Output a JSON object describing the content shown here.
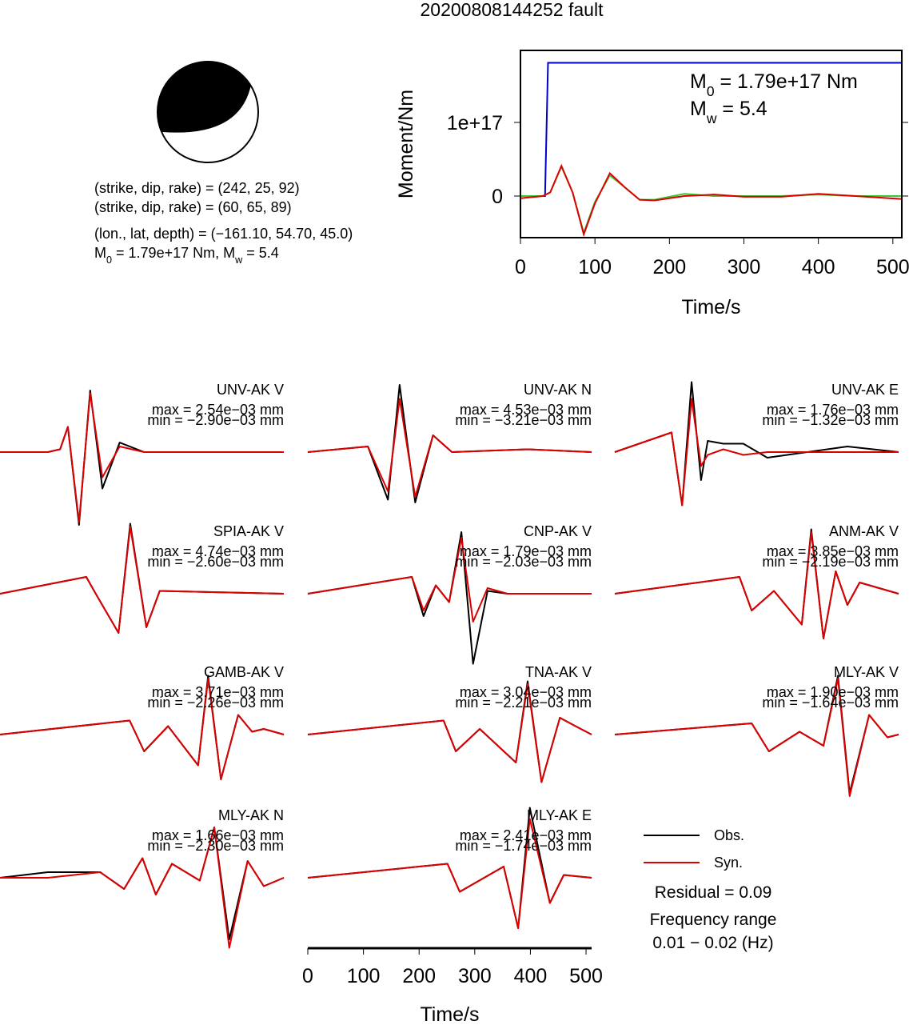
{
  "title": "20200808144252 fault",
  "mechanism": {
    "lines": [
      [
        "(strike, dip, rake) = (242, 25, 92)"
      ],
      [
        "(strike, dip, rake) = (60, 65, 89)"
      ],
      [
        "(lon., lat, depth) = (−161.10, 54.70, 45.0)"
      ],
      [
        "M",
        "0",
        " = 1.79e+17 Nm, M",
        "w",
        " = 5.4"
      ]
    ]
  },
  "chart_data": [
    {
      "type": "moment",
      "xlabel": "Time/s",
      "ylabel": "Moment/Nm",
      "xlim": [
        0,
        512
      ],
      "ylim": [
        -5.65e+16,
        1.978e+17
      ],
      "xticks": [
        0,
        100,
        200,
        300,
        400,
        500
      ],
      "yticks": [
        0,
        {
          "value": 1e+17,
          "label": "1e+17"
        }
      ],
      "annotations": [
        [
          "M",
          "0",
          " = 1.79e+17 Nm"
        ],
        [
          "M",
          "w",
          " = 5.4"
        ]
      ],
      "series": [
        {
          "color": "#0000cc",
          "x": [
            0,
            33,
            37,
            512
          ],
          "values": [
            0,
            0,
            1.81e+17,
            1.81e+17
          ]
        },
        {
          "color": "#33cc33",
          "x": [
            0,
            30,
            40,
            55,
            70,
            85,
            100,
            120,
            140,
            160,
            180,
            220,
            260,
            300,
            350,
            400,
            450,
            512
          ],
          "values": [
            0,
            0,
            5000000000000000.0,
            4e+16,
            5000000000000000.0,
            -5e+16,
            -8000000000000000.0,
            2.8e+16,
            1.2e+16,
            -5000000000000000.0,
            -5000000000000000.0,
            3000000000000000.0,
            0,
            0,
            0,
            2000000000000000.0,
            0,
            0
          ]
        },
        {
          "color": "#dd0000",
          "x": [
            0,
            30,
            40,
            55,
            70,
            85,
            100,
            120,
            140,
            160,
            180,
            220,
            260,
            300,
            350,
            400,
            450,
            512
          ],
          "values": [
            -3000000000000000.0,
            0,
            5000000000000000.0,
            4.1e+16,
            5000000000000000.0,
            -5.2e+16,
            -1e+16,
            3.1e+16,
            1.2e+16,
            -5000000000000000.0,
            -6000000000000000.0,
            0,
            2000000000000000.0,
            -1000000000000000.0,
            -1000000000000000.0,
            3000000000000000.0,
            0,
            -4000000000000000.0
          ]
        }
      ]
    },
    {
      "type": "waveform",
      "xlim": [
        0,
        510
      ],
      "xticks": [
        0,
        100,
        200,
        300,
        400,
        500
      ],
      "xlabel": "Time/s",
      "obs_color": "#000000",
      "syn_color": "#dd0000",
      "legend": [
        "Obs.",
        "Syn."
      ],
      "notes": [
        "Residual = 0.09",
        "Frequency range",
        "0.01 − 0.02 (Hz)"
      ],
      "panels": [
        {
          "name": "UNV-AK V",
          "max": "max = 2.54e−03 mm",
          "min": "min = −2.90e−03 mm",
          "t": [
            0,
            86,
            108,
            122,
            142,
            162,
            184,
            215,
            259,
            360,
            510
          ],
          "obs": [
            0,
            0,
            0.05,
            0.45,
            -1.3,
            1.1,
            -0.65,
            0.17,
            0,
            0,
            0
          ],
          "syn": [
            0,
            0,
            0.05,
            0.45,
            -1.25,
            1.05,
            -0.45,
            0.1,
            0,
            0,
            0
          ]
        },
        {
          "name": "UNV-AK N",
          "max": "max = 4.53e−03 mm",
          "min": "min = −3.21e−03 mm",
          "t": [
            0,
            108,
            144,
            165,
            193,
            225,
            259,
            395,
            510
          ],
          "obs": [
            0,
            0.1,
            -0.85,
            1.2,
            -0.9,
            0.3,
            0,
            0.05,
            0
          ],
          "syn": [
            0,
            0.1,
            -0.7,
            0.95,
            -0.8,
            0.3,
            0,
            0.05,
            0
          ]
        },
        {
          "name": "UNV-AK E",
          "max": "max = 1.76e−03 mm",
          "min": "min = −1.32e−03 mm",
          "t": [
            0,
            102,
            121,
            138,
            155,
            167,
            195,
            231,
            274,
            418,
            510
          ],
          "obs": [
            0,
            0.35,
            -0.95,
            1.25,
            -0.5,
            0.2,
            0.15,
            0.15,
            -0.1,
            0.1,
            0
          ],
          "syn": [
            0,
            0.35,
            -0.95,
            0.95,
            -0.25,
            -0.05,
            0.05,
            -0.05,
            0,
            0,
            0
          ]
        },
        {
          "name": "SPIA-AK V",
          "max": "max = 4.74e−03 mm",
          "min": "min = −2.60e−03 mm",
          "t": [
            0,
            155,
            172,
            213,
            234,
            263,
            287,
            510
          ],
          "obs": [
            0,
            0.3,
            0,
            -0.7,
            1.25,
            -0.6,
            0.05,
            0
          ],
          "syn": [
            0,
            0.3,
            0,
            -0.7,
            1.2,
            -0.6,
            0.05,
            0
          ]
        },
        {
          "name": "CNP-AK V",
          "max": "max = 1.79e−03 mm",
          "min": "min = −2.03e−03 mm",
          "t": [
            0,
            187,
            208,
            230,
            254,
            276,
            297,
            323,
            359,
            510
          ],
          "obs": [
            0,
            0.3,
            -0.4,
            0.15,
            -0.15,
            1.1,
            -1.25,
            0.05,
            0,
            0
          ],
          "syn": [
            0,
            0.3,
            -0.3,
            0.15,
            -0.15,
            1.0,
            -0.5,
            0.1,
            0,
            0
          ]
        },
        {
          "name": "ANM-AK V",
          "max": "max = 3.85e−03 mm",
          "min": "min = −2.19e−03 mm",
          "t": [
            0,
            224,
            246,
            286,
            336,
            353,
            375,
            397,
            418,
            440,
            510
          ],
          "obs": [
            0,
            0.3,
            -0.3,
            0.05,
            -0.55,
            1.15,
            -0.8,
            0.4,
            -0.2,
            0.2,
            0
          ],
          "syn": [
            0,
            0.3,
            -0.3,
            0.05,
            -0.55,
            1.1,
            -0.8,
            0.4,
            -0.2,
            0.2,
            0
          ]
        },
        {
          "name": "GAMB-AK V",
          "max": "max = 3.71e−03 mm",
          "min": "min = −2.26e−03 mm",
          "t": [
            0,
            233,
            259,
            302,
            356,
            374,
            397,
            428,
            453,
            474,
            510
          ],
          "obs": [
            0,
            0.25,
            -0.3,
            0.15,
            -0.55,
            1.05,
            -0.8,
            0.35,
            0.05,
            0.1,
            0
          ],
          "syn": [
            0,
            0.25,
            -0.3,
            0.15,
            -0.55,
            1.0,
            -0.8,
            0.35,
            0.05,
            0.1,
            0
          ]
        },
        {
          "name": "TNA-AK V",
          "max": "max = 3.04e−03 mm",
          "min": "min = −2.21e−03 mm",
          "t": [
            0,
            244,
            266,
            309,
            374,
            395,
            420,
            453,
            481,
            510
          ],
          "obs": [
            0,
            0.25,
            -0.3,
            0.1,
            -0.5,
            0.95,
            -0.85,
            0.3,
            0.15,
            0
          ],
          "syn": [
            0,
            0.25,
            -0.3,
            0.1,
            -0.5,
            0.9,
            -0.85,
            0.3,
            0.15,
            0
          ]
        },
        {
          "name": "MLY-AK V",
          "max": "max = 1.90e−03 mm",
          "min": "min = −1.64e−03 mm",
          "t": [
            0,
            246,
            277,
            332,
            375,
            401,
            422,
            457,
            490,
            510
          ],
          "obs": [
            0,
            0.2,
            -0.3,
            0.05,
            -0.2,
            1.05,
            -1.05,
            0.35,
            -0.05,
            0
          ],
          "syn": [
            0,
            0.2,
            -0.3,
            0.05,
            -0.2,
            1.0,
            -1.1,
            0.35,
            -0.05,
            0
          ]
        },
        {
          "name": "MLY-AK N",
          "max": "max = 1.66e−03 mm",
          "min": "min = −2.30e−03 mm",
          "t": [
            0,
            86,
            180,
            223,
            256,
            280,
            309,
            359,
            385,
            412,
            445,
            474,
            510
          ],
          "obs": [
            0,
            0.1,
            0.1,
            -0.2,
            0.35,
            -0.3,
            0.25,
            -0.05,
            0.9,
            -1.1,
            0.3,
            -0.15,
            0
          ],
          "syn": [
            0,
            0,
            0.1,
            -0.2,
            0.35,
            -0.3,
            0.25,
            -0.05,
            0.9,
            -1.25,
            0.3,
            -0.15,
            0
          ]
        },
        {
          "name": "MLY-AK E",
          "max": "max = 2.41e−03 mm",
          "min": "min = −1.74e−03 mm",
          "t": [
            0,
            251,
            273,
            352,
            378,
            399,
            435,
            460,
            510
          ],
          "obs": [
            0,
            0.25,
            -0.25,
            0.2,
            -0.9,
            1.25,
            -0.45,
            0.05,
            0
          ],
          "syn": [
            0,
            0.25,
            -0.25,
            0.2,
            -0.9,
            1.05,
            -0.45,
            0.05,
            0
          ]
        }
      ]
    }
  ]
}
